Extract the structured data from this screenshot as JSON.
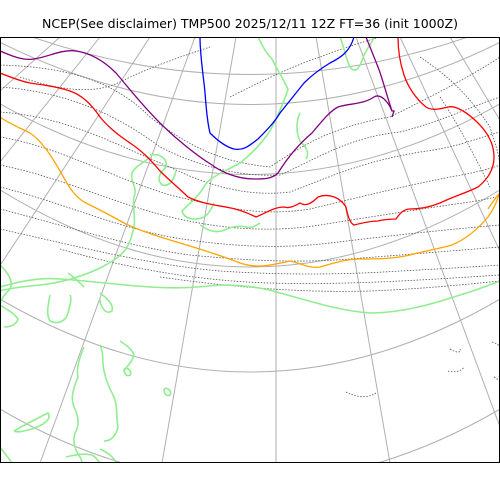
{
  "title": "NCEP(See disclaimer) TMP500 2025/12/11 12Z FT=36 (init 1000Z)",
  "colors": {
    "background": "#ffffff",
    "graticule": "#b0b0b0",
    "coastline": "#90ee90",
    "isotherm_minor": "#555555",
    "contour_purple": "#800080",
    "contour_blue": "#0000ff",
    "contour_red": "#ff0000",
    "contour_orange": "#ffa500",
    "frame": "#000000"
  },
  "map": {
    "projection": "polar stereographic (north-polar)",
    "graticule": true,
    "minor_isotherm_style": "dotted"
  }
}
